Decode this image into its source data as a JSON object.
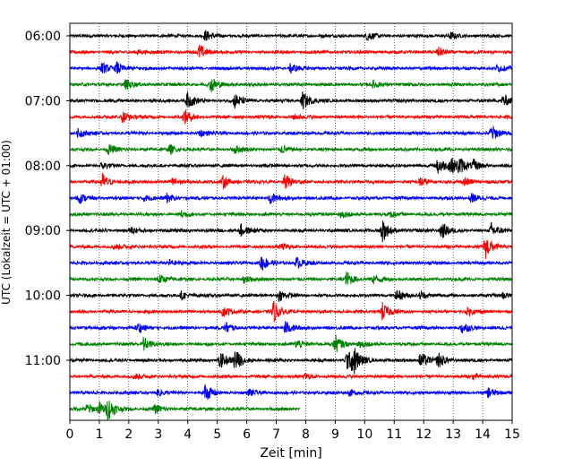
{
  "chart_data": {
    "type": "line",
    "title": "",
    "xlabel": "Zeit  [min]",
    "ylabel": "UTC (Lokalzeit = UTC + 01:00)",
    "xlim": [
      0,
      15
    ],
    "x_ticks": [
      "0",
      "1",
      "2",
      "3",
      "4",
      "5",
      "6",
      "7",
      "8",
      "9",
      "10",
      "11",
      "12",
      "13",
      "14",
      "15"
    ],
    "y_ticks": [
      {
        "row": 0,
        "label": "06:00"
      },
      {
        "row": 4,
        "label": "07:00"
      },
      {
        "row": 8,
        "label": "08:00"
      },
      {
        "row": 12,
        "label": "09:00"
      },
      {
        "row": 16,
        "label": "10:00"
      },
      {
        "row": 20,
        "label": "11:00"
      }
    ],
    "vertical_grid": "dotted",
    "trace_colors": [
      "#000000",
      "#ff0000",
      "#0000ff",
      "#008000"
    ],
    "trace_minutes": 15,
    "rows": 24,
    "last_row_minutes": 7.8,
    "events": [
      {
        "row": 0,
        "t": 4.6,
        "amp": 0.6
      },
      {
        "row": 0,
        "t": 10.1,
        "amp": 0.5
      },
      {
        "row": 0,
        "t": 12.9,
        "amp": 0.35
      },
      {
        "row": 1,
        "t": 2.3,
        "amp": 0.3
      },
      {
        "row": 1,
        "t": 4.4,
        "amp": 0.9
      },
      {
        "row": 1,
        "t": 12.5,
        "amp": 0.5
      },
      {
        "row": 2,
        "t": 1.1,
        "amp": 0.6
      },
      {
        "row": 2,
        "t": 1.6,
        "amp": 0.7
      },
      {
        "row": 2,
        "t": 7.5,
        "amp": 0.6
      },
      {
        "row": 2,
        "t": 14.5,
        "amp": 0.4
      },
      {
        "row": 3,
        "t": 1.9,
        "amp": 0.6
      },
      {
        "row": 3,
        "t": 4.8,
        "amp": 0.9
      },
      {
        "row": 3,
        "t": 10.3,
        "amp": 0.4
      },
      {
        "row": 4,
        "t": 4.0,
        "amp": 1.0
      },
      {
        "row": 4,
        "t": 5.6,
        "amp": 0.9
      },
      {
        "row": 4,
        "t": 7.9,
        "amp": 1.1
      },
      {
        "row": 4,
        "t": 14.7,
        "amp": 0.8
      },
      {
        "row": 5,
        "t": 1.8,
        "amp": 0.7
      },
      {
        "row": 5,
        "t": 3.9,
        "amp": 0.9
      },
      {
        "row": 5,
        "t": 7.6,
        "amp": 0.3
      },
      {
        "row": 6,
        "t": 0.3,
        "amp": 0.6
      },
      {
        "row": 6,
        "t": 4.4,
        "amp": 0.4
      },
      {
        "row": 6,
        "t": 14.3,
        "amp": 1.0
      },
      {
        "row": 7,
        "t": 1.3,
        "amp": 0.6
      },
      {
        "row": 7,
        "t": 3.4,
        "amp": 0.5
      },
      {
        "row": 7,
        "t": 5.6,
        "amp": 0.5
      },
      {
        "row": 7,
        "t": 7.2,
        "amp": 0.4
      },
      {
        "row": 8,
        "t": 1.1,
        "amp": 0.4
      },
      {
        "row": 8,
        "t": 12.5,
        "amp": 1.2
      },
      {
        "row": 8,
        "t": 12.9,
        "amp": 1.1
      },
      {
        "row": 8,
        "t": 13.2,
        "amp": 0.9
      },
      {
        "row": 8,
        "t": 13.7,
        "amp": 0.6
      },
      {
        "row": 9,
        "t": 1.1,
        "amp": 1.0
      },
      {
        "row": 9,
        "t": 3.5,
        "amp": 0.5
      },
      {
        "row": 9,
        "t": 5.2,
        "amp": 0.7
      },
      {
        "row": 9,
        "t": 7.3,
        "amp": 0.9
      },
      {
        "row": 9,
        "t": 11.9,
        "amp": 0.6
      },
      {
        "row": 9,
        "t": 13.4,
        "amp": 0.5
      },
      {
        "row": 10,
        "t": 0.3,
        "amp": 0.6
      },
      {
        "row": 10,
        "t": 2.5,
        "amp": 0.4
      },
      {
        "row": 10,
        "t": 3.3,
        "amp": 0.5
      },
      {
        "row": 10,
        "t": 6.8,
        "amp": 0.7
      },
      {
        "row": 10,
        "t": 13.6,
        "amp": 0.6
      },
      {
        "row": 11,
        "t": 3.8,
        "amp": 0.4
      },
      {
        "row": 11,
        "t": 9.2,
        "amp": 0.4
      },
      {
        "row": 11,
        "t": 10.9,
        "amp": 0.3
      },
      {
        "row": 12,
        "t": 2.1,
        "amp": 0.4
      },
      {
        "row": 12,
        "t": 5.8,
        "amp": 0.8
      },
      {
        "row": 12,
        "t": 10.6,
        "amp": 1.4
      },
      {
        "row": 12,
        "t": 12.6,
        "amp": 1.1
      },
      {
        "row": 12,
        "t": 14.3,
        "amp": 0.9
      },
      {
        "row": 13,
        "t": 1.5,
        "amp": 0.3
      },
      {
        "row": 13,
        "t": 7.2,
        "amp": 0.3
      },
      {
        "row": 13,
        "t": 14.1,
        "amp": 1.4
      },
      {
        "row": 14,
        "t": 3.4,
        "amp": 0.4
      },
      {
        "row": 14,
        "t": 6.5,
        "amp": 1.0
      },
      {
        "row": 14,
        "t": 7.7,
        "amp": 0.7
      },
      {
        "row": 15,
        "t": 3.0,
        "amp": 0.7
      },
      {
        "row": 15,
        "t": 5.9,
        "amp": 0.5
      },
      {
        "row": 15,
        "t": 9.4,
        "amp": 0.9
      },
      {
        "row": 15,
        "t": 10.3,
        "amp": 0.5
      },
      {
        "row": 16,
        "t": 3.8,
        "amp": 0.5
      },
      {
        "row": 16,
        "t": 7.1,
        "amp": 0.6
      },
      {
        "row": 16,
        "t": 11.1,
        "amp": 0.7
      },
      {
        "row": 16,
        "t": 11.9,
        "amp": 0.5
      },
      {
        "row": 16,
        "t": 14.7,
        "amp": 0.4
      },
      {
        "row": 17,
        "t": 5.2,
        "amp": 0.6
      },
      {
        "row": 17,
        "t": 6.9,
        "amp": 1.3
      },
      {
        "row": 17,
        "t": 10.6,
        "amp": 1.1
      },
      {
        "row": 17,
        "t": 13.5,
        "amp": 0.4
      },
      {
        "row": 18,
        "t": 2.3,
        "amp": 0.6
      },
      {
        "row": 18,
        "t": 5.3,
        "amp": 0.6
      },
      {
        "row": 18,
        "t": 7.3,
        "amp": 0.9
      },
      {
        "row": 18,
        "t": 13.3,
        "amp": 0.7
      },
      {
        "row": 19,
        "t": 2.5,
        "amp": 0.9
      },
      {
        "row": 19,
        "t": 7.7,
        "amp": 0.6
      },
      {
        "row": 19,
        "t": 9.0,
        "amp": 1.1
      },
      {
        "row": 19,
        "t": 9.8,
        "amp": 0.5
      },
      {
        "row": 20,
        "t": 5.1,
        "amp": 1.0
      },
      {
        "row": 20,
        "t": 5.6,
        "amp": 1.3
      },
      {
        "row": 20,
        "t": 9.4,
        "amp": 1.2
      },
      {
        "row": 20,
        "t": 9.6,
        "amp": 1.6
      },
      {
        "row": 20,
        "t": 11.9,
        "amp": 1.1
      },
      {
        "row": 20,
        "t": 12.5,
        "amp": 0.9
      },
      {
        "row": 21,
        "t": 2.2,
        "amp": 0.3
      },
      {
        "row": 21,
        "t": 8.0,
        "amp": 0.3
      },
      {
        "row": 21,
        "t": 13.7,
        "amp": 0.3
      },
      {
        "row": 22,
        "t": 3.0,
        "amp": 0.4
      },
      {
        "row": 22,
        "t": 4.6,
        "amp": 1.1
      },
      {
        "row": 22,
        "t": 6.1,
        "amp": 0.4
      },
      {
        "row": 22,
        "t": 9.5,
        "amp": 0.4
      },
      {
        "row": 22,
        "t": 14.2,
        "amp": 0.6
      },
      {
        "row": 23,
        "t": 0.6,
        "amp": 0.7
      },
      {
        "row": 23,
        "t": 1.0,
        "amp": 0.8
      },
      {
        "row": 23,
        "t": 1.3,
        "amp": 1.2
      },
      {
        "row": 23,
        "t": 2.9,
        "amp": 0.5
      }
    ]
  }
}
